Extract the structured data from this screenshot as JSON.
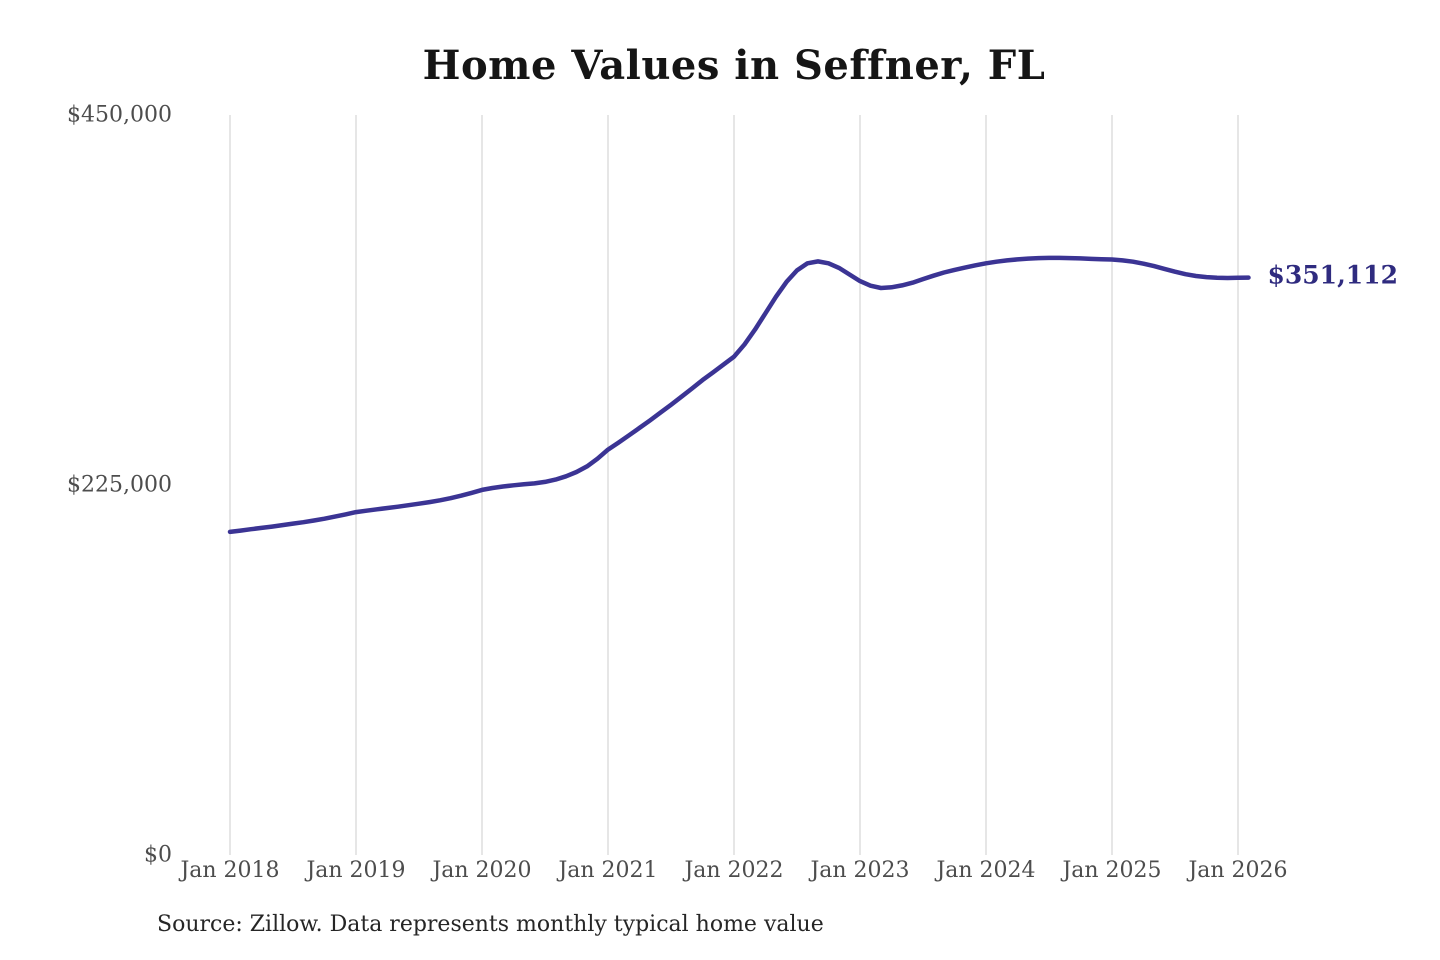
{
  "page": {
    "background": "#ffffff"
  },
  "chart_data": {
    "type": "line",
    "title": "Home Values in Seffner, FL",
    "source_note": "Source: Zillow. Data represents monthly typical home value",
    "end_label": "$351,112",
    "end_value": 351112,
    "line_color": "#3b3494",
    "end_label_color": "#2f2b7f",
    "grid_color": "#cccccc",
    "axis_text_color": "#4d4d4d",
    "ylim": [
      0,
      450000
    ],
    "grid": "vertical-only",
    "legend": "none",
    "y_ticks": [
      {
        "value": 0,
        "label": "$0"
      },
      {
        "value": 225000,
        "label": "$225,000"
      },
      {
        "value": 450000,
        "label": "$450,000"
      }
    ],
    "x_ticks": [
      "Jan 2018",
      "Jan 2019",
      "Jan 2020",
      "Jan 2021",
      "Jan 2022",
      "Jan 2023",
      "Jan 2024",
      "Jan 2025",
      "Jan 2026"
    ],
    "series": [
      {
        "name": "Monthly typical home value",
        "start_month": "Jan 2018",
        "end_month": "Feb 2026",
        "frequency": "monthly",
        "values": [
          196500,
          197300,
          198100,
          198900,
          199700,
          200600,
          201500,
          202400,
          203400,
          204500,
          205800,
          207100,
          208500,
          209400,
          210200,
          211000,
          211800,
          212700,
          213600,
          214600,
          215700,
          217000,
          218500,
          220200,
          222000,
          223200,
          224100,
          224800,
          225400,
          226000,
          226900,
          228300,
          230300,
          232900,
          236300,
          241000,
          246500,
          250800,
          255200,
          259700,
          264300,
          269000,
          273800,
          278700,
          283700,
          288800,
          293500,
          298200,
          303000,
          310500,
          319500,
          329500,
          339500,
          348500,
          355500,
          359800,
          361000,
          359800,
          357000,
          353000,
          349000,
          346200,
          344800,
          345200,
          346400,
          348000,
          350200,
          352300,
          354200,
          355800,
          357200,
          358600,
          359800,
          360800,
          361600,
          362200,
          362700,
          363000,
          363100,
          363100,
          363000,
          362800,
          362500,
          362300,
          362100,
          361600,
          360800,
          359600,
          358100,
          356400,
          354700,
          353200,
          352100,
          351400,
          351000,
          350900,
          351000,
          351112
        ]
      }
    ]
  }
}
